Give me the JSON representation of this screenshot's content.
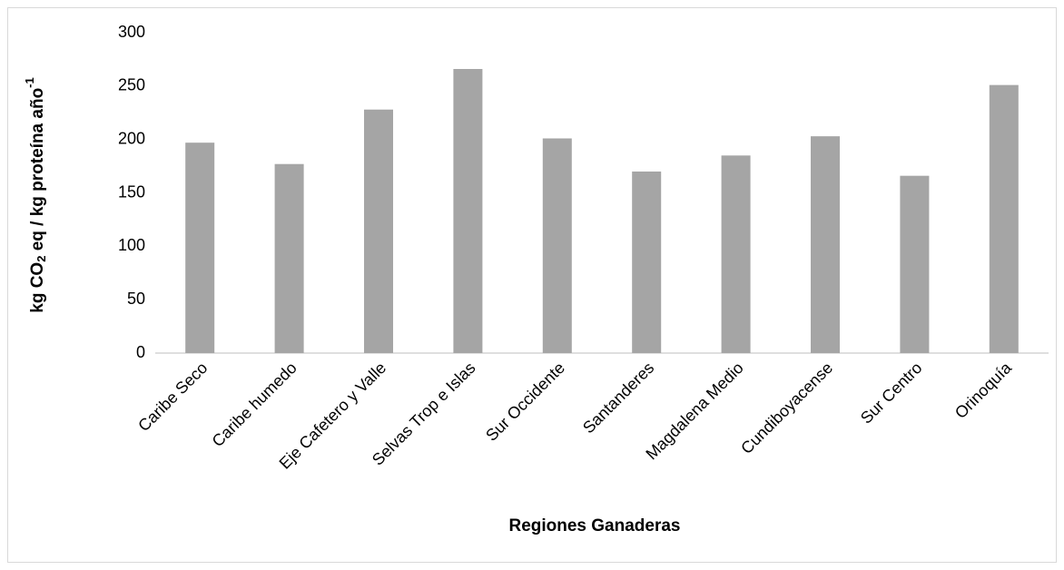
{
  "chart_data": {
    "type": "bar",
    "y_label": [
      "kg CO",
      "2",
      " eq / kg proteína año",
      "-1"
    ],
    "x_label": "Regiones Ganaderas",
    "categories": [
      "Caribe Seco",
      "Caribe humedo",
      "Eje Cafetero y Valle",
      "Selvas Trop e Islas",
      "Sur Occidente",
      "Santanderes",
      "Magdalena Medio",
      "Cundiboyacense",
      "Sur Centro",
      "Orinoquía"
    ],
    "values": [
      197,
      177,
      228,
      266,
      201,
      170,
      185,
      203,
      166,
      251
    ],
    "color": "#a5a5a5",
    "ylim": [
      0,
      300
    ],
    "yticks": [
      0,
      50,
      100,
      150,
      200,
      250,
      300
    ],
    "grid": false
  }
}
